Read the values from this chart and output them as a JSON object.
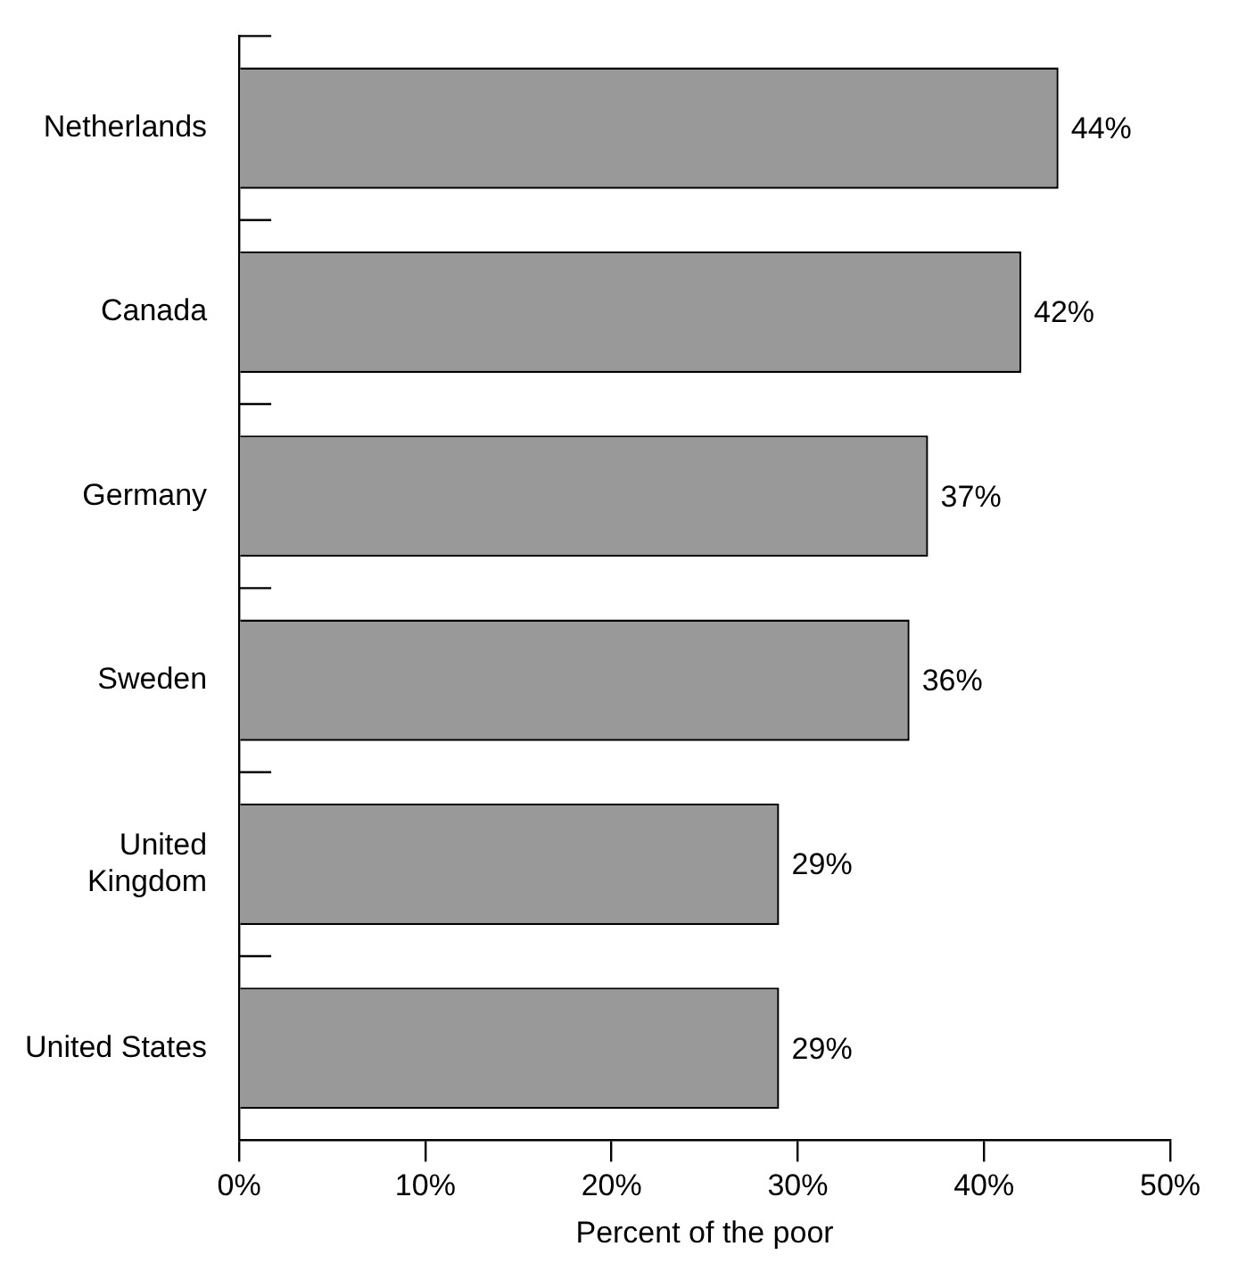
{
  "chart_data": {
    "type": "bar",
    "orientation": "horizontal",
    "xlabel": "Percent of the poor",
    "categories": [
      "Netherlands",
      "Canada",
      "Germany",
      "Sweden",
      "United Kingdom",
      "United States"
    ],
    "values": [
      44,
      42,
      37,
      36,
      29,
      29
    ],
    "value_labels": [
      "44%",
      "42%",
      "37%",
      "36%",
      "29%",
      "29%"
    ],
    "color": "#999999",
    "xlim": [
      0,
      50
    ],
    "xticks": [
      {
        "value": 0,
        "label": "0%"
      },
      {
        "value": 10,
        "label": "10%"
      },
      {
        "value": 20,
        "label": "20%"
      },
      {
        "value": 30,
        "label": "30%"
      },
      {
        "value": 40,
        "label": "40%"
      },
      {
        "value": 50,
        "label": "50%"
      }
    ],
    "grid": false,
    "legend": false
  }
}
